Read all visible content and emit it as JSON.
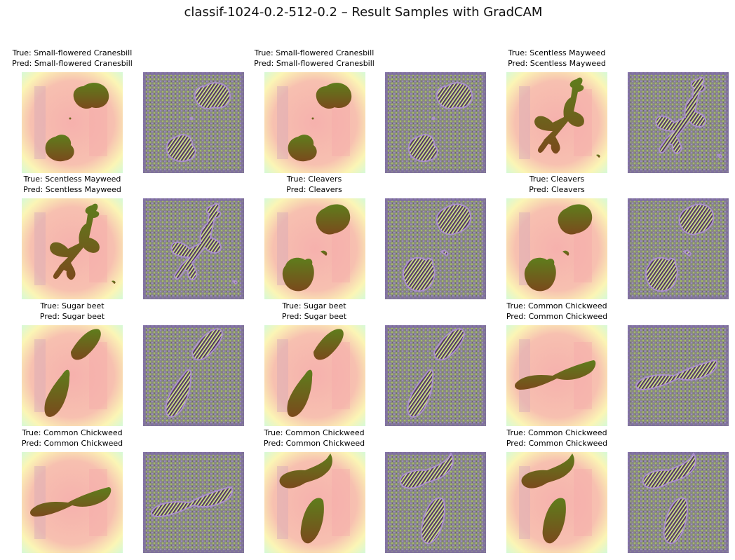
{
  "title": "classif-1024-0.2-512-0.2 – Result Samples with GradCAM",
  "samples": [
    {
      "true": "True: Small-flowered Cranesbill",
      "pred": "Pred: Small-flowered Cranesbill",
      "plant": "cranesbill"
    },
    {
      "true": "True: Small-flowered Cranesbill",
      "pred": "Pred: Small-flowered Cranesbill",
      "plant": "cranesbill"
    },
    {
      "true": "True: Scentless Mayweed",
      "pred": "Pred: Scentless Mayweed",
      "plant": "mayweed"
    },
    {
      "true": "True: Scentless Mayweed",
      "pred": "Pred: Scentless Mayweed",
      "plant": "mayweed"
    },
    {
      "true": "True: Cleavers",
      "pred": "Pred: Cleavers",
      "plant": "cleavers"
    },
    {
      "true": "True: Cleavers",
      "pred": "Pred: Cleavers",
      "plant": "cleavers"
    },
    {
      "true": "True: Sugar beet",
      "pred": "Pred: Sugar beet",
      "plant": "sugarbeet"
    },
    {
      "true": "True: Sugar beet",
      "pred": "Pred: Sugar beet",
      "plant": "sugarbeet"
    },
    {
      "true": "True: Common Chickweed",
      "pred": "Pred: Common Chickweed",
      "plant": "chickweed-a"
    },
    {
      "true": "True: Common Chickweed",
      "pred": "Pred: Common Chickweed",
      "plant": "chickweed-a"
    },
    {
      "true": "True: Common Chickweed",
      "pred": "Pred: Common Chickweed",
      "plant": "chickweed-b"
    },
    {
      "true": "True: Common Chickweed",
      "pred": "Pred: Common Chickweed",
      "plant": "chickweed-b"
    }
  ]
}
